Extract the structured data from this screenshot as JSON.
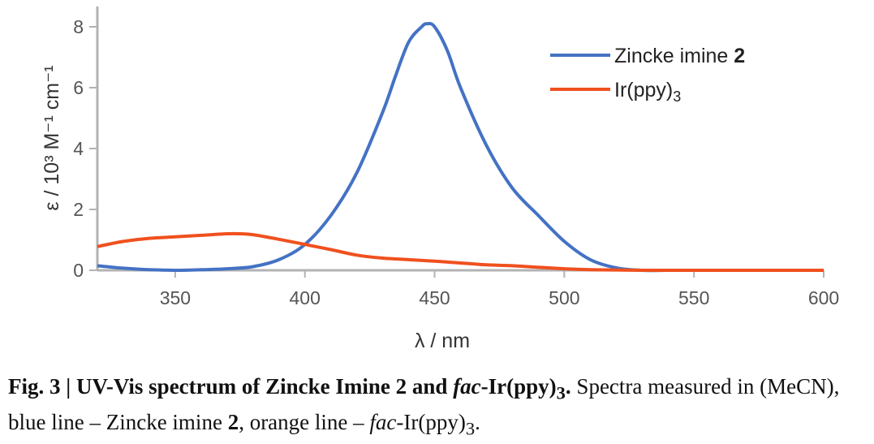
{
  "chart_data": {
    "type": "line",
    "xlabel": "λ / nm",
    "ylabel": "ε / 10³ M⁻¹ cm⁻¹",
    "xlim": [
      320,
      600
    ],
    "ylim": [
      0,
      8.4
    ],
    "xticks": [
      350,
      400,
      450,
      500,
      550,
      600
    ],
    "yticks": [
      0,
      2,
      4,
      6,
      8
    ],
    "grid": false,
    "legend_position": "top-right",
    "series": [
      {
        "name": "Zincke imine 2",
        "color": "#4472C4",
        "x": [
          320,
          330,
          340,
          350,
          360,
          370,
          380,
          390,
          400,
          410,
          420,
          430,
          435,
          440,
          445,
          447,
          450,
          455,
          460,
          470,
          480,
          490,
          500,
          510,
          520,
          530,
          540,
          550,
          560,
          580,
          600
        ],
        "y": [
          0.15,
          0.07,
          0.02,
          0.0,
          0.02,
          0.05,
          0.12,
          0.35,
          0.85,
          1.8,
          3.2,
          5.2,
          6.4,
          7.5,
          8.0,
          8.1,
          8.0,
          7.2,
          6.0,
          4.1,
          2.7,
          1.8,
          0.95,
          0.35,
          0.08,
          0.0,
          0.0,
          0.0,
          0.0,
          0.0,
          0.0
        ]
      },
      {
        "name": "Ir(ppy)₃",
        "color": "#F0501E",
        "x": [
          320,
          330,
          340,
          350,
          360,
          370,
          375,
          380,
          390,
          400,
          410,
          420,
          430,
          440,
          450,
          460,
          470,
          480,
          490,
          500,
          510,
          520,
          530,
          550,
          600
        ],
        "y": [
          0.78,
          0.95,
          1.05,
          1.1,
          1.15,
          1.2,
          1.2,
          1.17,
          1.02,
          0.85,
          0.68,
          0.5,
          0.4,
          0.35,
          0.3,
          0.24,
          0.18,
          0.15,
          0.1,
          0.05,
          0.02,
          0.01,
          0.0,
          0.0,
          0.0
        ]
      }
    ],
    "legend": [
      {
        "text": "Zincke imine ",
        "suffix": "2",
        "color": "#4472C4"
      },
      {
        "text": "Ir(ppy)",
        "suffix": "3",
        "color": "#F0501E"
      }
    ]
  },
  "caption": {
    "fig_label": "Fig. 3 | UV-Vis spectrum of Zincke Imine 2 and ",
    "fig_label_italic": "fac",
    "fig_label_rest": "-Ir(ppy)",
    "fig_label_sub": "3",
    "fig_label_end": ".",
    "text1": " Spectra measured in (MeCN), blue line – Zincke imine ",
    "text1_bold": "2",
    "text2": ", orange line – ",
    "text2_italic": "fac",
    "text2_rest": "-Ir(ppy)",
    "text2_sub": "3",
    "text2_end": "."
  }
}
